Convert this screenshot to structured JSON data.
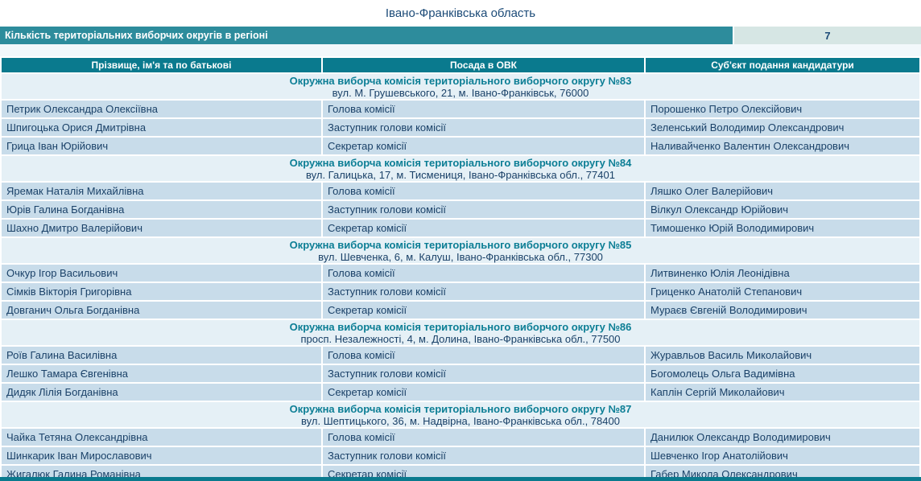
{
  "page": {
    "title": "Івано-Франківська область"
  },
  "count_bar": {
    "label": "Кількість територіальних виборчих округів в регіоні",
    "value": "7"
  },
  "table": {
    "columns": [
      "Прізвище, ім'я та по батькові",
      "Посада в ОВК",
      "Суб'єкт подання кандидатури"
    ],
    "groups": [
      {
        "title": "Окружна виборча комісія територіального виборчого округу №83",
        "address": "вул. М. Грушевського, 21, м. Івано-Франківськ, 76000",
        "rows": [
          [
            "Петрик Олександра Олексіївна",
            "Голова комісії",
            "Порошенко Петро Олексійович"
          ],
          [
            "Шпигоцька Орися Дмитрівна",
            "Заступник голови комісії",
            "Зеленський Володимир Олександрович"
          ],
          [
            "Грица Іван Юрійович",
            "Секретар комісії",
            "Наливайченко Валентин Олександрович"
          ]
        ]
      },
      {
        "title": "Окружна виборча комісія територіального виборчого округу №84",
        "address": "вул. Галицька, 17, м. Тисмениця, Івано-Франківська обл., 77401",
        "rows": [
          [
            "Яремак Наталія Михайлівна",
            "Голова комісії",
            "Ляшко Олег Валерійович"
          ],
          [
            "Юрів Галина Богданівна",
            "Заступник голови комісії",
            "Вілкул Олександр Юрійович"
          ],
          [
            "Шахно Дмитро Валерійович",
            "Секретар комісії",
            "Тимошенко Юрій Володимирович"
          ]
        ]
      },
      {
        "title": "Окружна виборча комісія територіального виборчого округу №85",
        "address": "вул. Шевченка, 6, м. Калуш, Івано-Франківська обл., 77300",
        "rows": [
          [
            "Очкур Ігор Васильович",
            "Голова комісії",
            "Литвиненко Юлія Леонідівна"
          ],
          [
            "Сімків Вікторія Григорівна",
            "Заступник голови комісії",
            "Гриценко Анатолій Степанович"
          ],
          [
            "Довганич Ольга Богданівна",
            "Секретар комісії",
            "Мураєв Євгеній Володимирович"
          ]
        ]
      },
      {
        "title": "Окружна виборча комісія територіального виборчого округу №86",
        "address": "просп. Незалежності, 4, м. Долина, Івано-Франківська обл., 77500",
        "rows": [
          [
            "Роїв Галина Василівна",
            "Голова комісії",
            "Журавльов Василь Миколайович"
          ],
          [
            "Лешко Тамара Євгенівна",
            "Заступник голови комісії",
            "Богомолець Ольга Вадимівна"
          ],
          [
            "Дидяк Лілія Богданівна",
            "Секретар комісії",
            "Каплін Сергій Миколайович"
          ]
        ]
      },
      {
        "title": "Окружна виборча комісія територіального виборчого округу №87",
        "address": "вул. Шептицького, 36, м. Надвірна, Івано-Франківська обл., 78400",
        "rows": [
          [
            "Чайка Тетяна Олександрівна",
            "Голова комісії",
            "Данилюк Олександр Володимирович"
          ],
          [
            "Шинкарик Іван Мирославович",
            "Заступник голови комісії",
            "Шевченко Ігор Анатолійович"
          ],
          [
            "Жигалюк Галина Романівна",
            "Секретар комісії",
            "Габер Микола Олександрович"
          ]
        ]
      }
    ]
  },
  "colors": {
    "bar_teal": "#2d8c9c",
    "table_header_teal": "#0a7a8e",
    "value_box": "#d6e6e4",
    "row_bg": "#c8dcea",
    "group_bg": "#e5f0f6",
    "text_navy": "#1a4168",
    "group_title_teal": "#0c7e95"
  }
}
